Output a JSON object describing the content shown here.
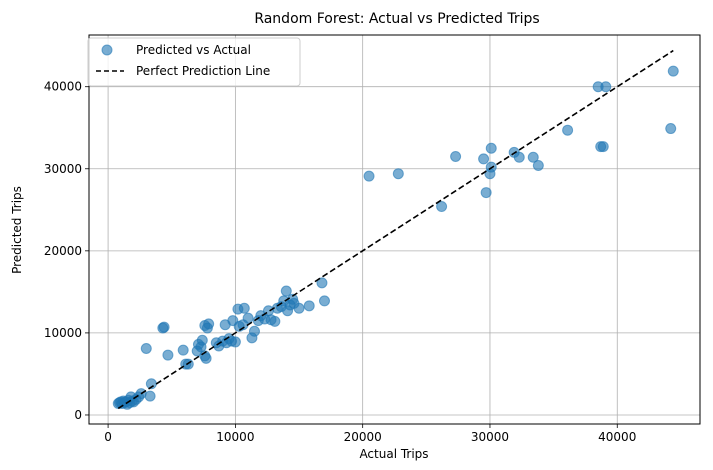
{
  "chart_data": {
    "type": "scatter",
    "title": "Random Forest: Actual vs Predicted Trips",
    "xlabel": "Actual Trips",
    "ylabel": "Predicted Trips",
    "xlim": [
      -1500,
      46500
    ],
    "ylim": [
      -1100,
      46300
    ],
    "xticks": [
      0,
      10000,
      20000,
      30000,
      40000
    ],
    "yticks": [
      0,
      10000,
      20000,
      30000,
      40000
    ],
    "xtick_labels": [
      "0",
      "10000",
      "20000",
      "30000",
      "40000"
    ],
    "ytick_labels": [
      "0",
      "10000",
      "20000",
      "30000",
      "40000"
    ],
    "grid": true,
    "legend_position": "top-left",
    "series": [
      {
        "name": "Predicted vs Actual",
        "kind": "scatter",
        "color": "#1f77b4",
        "points": [
          [
            800,
            1400
          ],
          [
            900,
            1500
          ],
          [
            1000,
            1600
          ],
          [
            1100,
            1400
          ],
          [
            1200,
            1700
          ],
          [
            1300,
            1500
          ],
          [
            1400,
            1600
          ],
          [
            1500,
            1300
          ],
          [
            1600,
            1800
          ],
          [
            1700,
            1500
          ],
          [
            1800,
            2200
          ],
          [
            1900,
            1700
          ],
          [
            2000,
            1600
          ],
          [
            2200,
            1900
          ],
          [
            2400,
            2200
          ],
          [
            2600,
            2600
          ],
          [
            3000,
            8100
          ],
          [
            3300,
            2300
          ],
          [
            3400,
            3800
          ],
          [
            4300,
            10600
          ],
          [
            4400,
            10700
          ],
          [
            4700,
            7300
          ],
          [
            5900,
            7900
          ],
          [
            6100,
            6200
          ],
          [
            6300,
            6200
          ],
          [
            7000,
            7800
          ],
          [
            7100,
            8600
          ],
          [
            7300,
            8300
          ],
          [
            7400,
            9100
          ],
          [
            7600,
            7200
          ],
          [
            7700,
            6900
          ],
          [
            7600,
            10900
          ],
          [
            7900,
            11100
          ],
          [
            7800,
            10600
          ],
          [
            8500,
            8800
          ],
          [
            8700,
            8400
          ],
          [
            9000,
            9000
          ],
          [
            9200,
            11000
          ],
          [
            9300,
            8800
          ],
          [
            9500,
            9300
          ],
          [
            9700,
            9000
          ],
          [
            9800,
            11500
          ],
          [
            10000,
            8900
          ],
          [
            10200,
            12900
          ],
          [
            10300,
            10800
          ],
          [
            10600,
            11000
          ],
          [
            10700,
            13000
          ],
          [
            11000,
            11800
          ],
          [
            11300,
            9400
          ],
          [
            11500,
            10200
          ],
          [
            11800,
            11500
          ],
          [
            12000,
            12100
          ],
          [
            12300,
            11700
          ],
          [
            12600,
            12700
          ],
          [
            12800,
            11600
          ],
          [
            13100,
            11400
          ],
          [
            13300,
            13000
          ],
          [
            13600,
            13200
          ],
          [
            13800,
            13900
          ],
          [
            14000,
            15100
          ],
          [
            14100,
            12700
          ],
          [
            14300,
            13400
          ],
          [
            14500,
            14100
          ],
          [
            14600,
            13600
          ],
          [
            15000,
            13000
          ],
          [
            15800,
            13300
          ],
          [
            16800,
            16100
          ],
          [
            17000,
            13900
          ],
          [
            20500,
            29100
          ],
          [
            22800,
            29400
          ],
          [
            26200,
            25400
          ],
          [
            27300,
            31500
          ],
          [
            29500,
            31200
          ],
          [
            29700,
            27100
          ],
          [
            30000,
            29400
          ],
          [
            30100,
            30200
          ],
          [
            30100,
            32500
          ],
          [
            31900,
            32000
          ],
          [
            32300,
            31400
          ],
          [
            33400,
            31400
          ],
          [
            33800,
            30400
          ],
          [
            36100,
            34700
          ],
          [
            38500,
            40000
          ],
          [
            38700,
            32700
          ],
          [
            38900,
            32700
          ],
          [
            39100,
            40000
          ],
          [
            44200,
            34900
          ],
          [
            44400,
            41900
          ]
        ]
      },
      {
        "name": "Perfect Prediction Line",
        "kind": "line",
        "color": "#000000",
        "dash": "dashed",
        "points": [
          [
            800,
            800
          ],
          [
            44400,
            44400
          ]
        ]
      }
    ]
  }
}
